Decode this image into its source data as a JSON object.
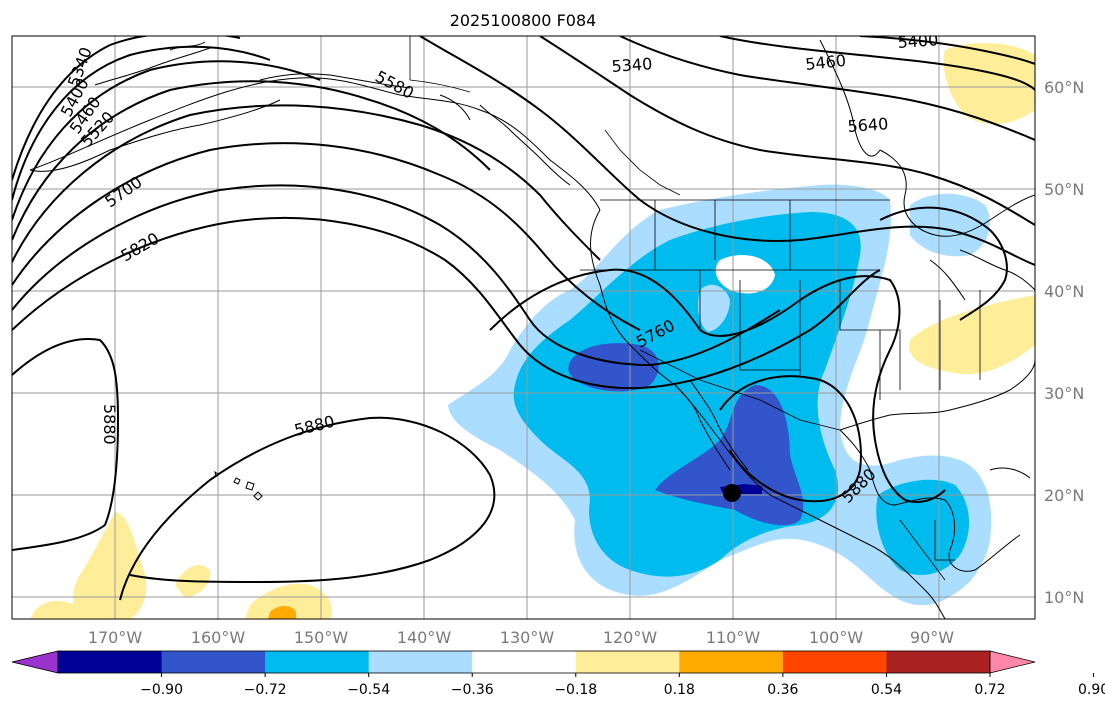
{
  "title": "2025100800 F084",
  "axes": {
    "lon_ticks": [
      "170°W",
      "160°W",
      "150°W",
      "140°W",
      "130°W",
      "120°W",
      "110°W",
      "100°W",
      "90°W"
    ],
    "lat_ticks": [
      "60°N",
      "50°N",
      "40°N",
      "30°N",
      "20°N",
      "10°N"
    ],
    "tick_color": "#7a7a7a",
    "grid": true
  },
  "contour_labels": [
    "5340",
    "5400",
    "5460",
    "5520",
    "5580",
    "5700",
    "5820",
    "5340",
    "5460",
    "5400",
    "5640",
    "5760",
    "5880",
    "5880",
    "5880"
  ],
  "colorbar": {
    "ticks": [
      "−0.90",
      "−0.72",
      "−0.54",
      "−0.36",
      "−0.18",
      "0.18",
      "0.36",
      "0.54",
      "0.72",
      "0.90"
    ],
    "colors": [
      "#9933cc",
      "#000099",
      "#3355cc",
      "#00bbee",
      "#aaddff",
      "#ffffff",
      "#ffee99",
      "#ffaa00",
      "#ff4400",
      "#aa2222",
      "#ff88aa"
    ],
    "extend": "both"
  },
  "colors": {
    "dark_blue": "#3355cc",
    "mid_blue": "#00bbee",
    "light_blue": "#aaddff",
    "navy": "#000099",
    "yellow": "#ffee99",
    "orange": "#ffaa00"
  },
  "marker": "storm-center-dot"
}
